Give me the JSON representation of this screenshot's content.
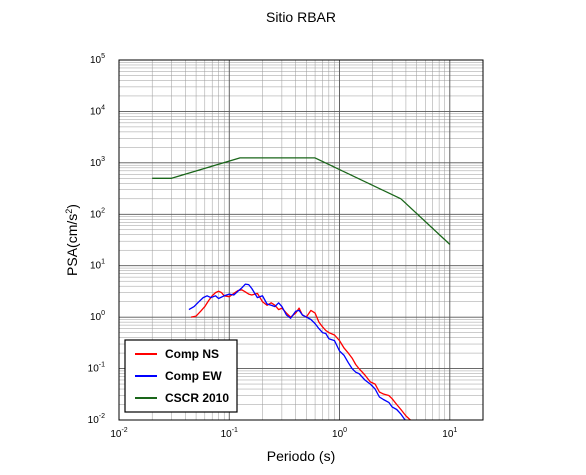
{
  "chart_data": {
    "type": "line",
    "title": "Sitio RBAR",
    "xlabel": "Periodo (s)",
    "ylabel_main": "PSA(cm/s",
    "ylabel_sup": "2",
    "ylabel_close": ")",
    "xscale": "log",
    "yscale": "log",
    "xlim": [
      0.01,
      20
    ],
    "ylim": [
      0.01,
      100000
    ],
    "grid": true,
    "legend_position": "bottom-left",
    "x_ticks": [
      {
        "base": "10",
        "exp": "-2",
        "value": 0.01
      },
      {
        "base": "10",
        "exp": "-1",
        "value": 0.1
      },
      {
        "base": "10",
        "exp": "0",
        "value": 1
      },
      {
        "base": "10",
        "exp": "1",
        "value": 10
      }
    ],
    "y_ticks": [
      {
        "base": "10",
        "exp": "-2",
        "value": 0.01
      },
      {
        "base": "10",
        "exp": "-1",
        "value": 0.1
      },
      {
        "base": "10",
        "exp": "0",
        "value": 1
      },
      {
        "base": "10",
        "exp": "1",
        "value": 10
      },
      {
        "base": "10",
        "exp": "2",
        "value": 100
      },
      {
        "base": "10",
        "exp": "3",
        "value": 1000
      },
      {
        "base": "10",
        "exp": "4",
        "value": 10000
      },
      {
        "base": "10",
        "exp": "5",
        "value": 100000
      }
    ],
    "series": [
      {
        "name": "Comp NS",
        "color": "#ff0000",
        "x": [
          0.045,
          0.05,
          0.055,
          0.06,
          0.065,
          0.07,
          0.075,
          0.08,
          0.085,
          0.09,
          0.1,
          0.11,
          0.12,
          0.13,
          0.14,
          0.15,
          0.16,
          0.18,
          0.2,
          0.22,
          0.24,
          0.26,
          0.28,
          0.3,
          0.33,
          0.36,
          0.4,
          0.43,
          0.46,
          0.5,
          0.55,
          0.6,
          0.65,
          0.7,
          0.75,
          0.8,
          0.9,
          1.0,
          1.1,
          1.2,
          1.3,
          1.4,
          1.5,
          1.7,
          1.9,
          2.1,
          2.3,
          2.5,
          2.8,
          3.0,
          3.3,
          3.6,
          4.0,
          4.5
        ],
        "y": [
          1.0,
          1.05,
          1.3,
          1.6,
          2.1,
          2.6,
          3.0,
          3.2,
          3.0,
          2.6,
          2.5,
          2.9,
          3.3,
          3.4,
          3.1,
          2.8,
          2.7,
          2.9,
          2.0,
          1.7,
          1.9,
          1.7,
          1.4,
          1.5,
          1.2,
          1.0,
          1.2,
          1.5,
          1.1,
          1.0,
          1.35,
          1.2,
          0.8,
          0.65,
          0.55,
          0.5,
          0.45,
          0.35,
          0.25,
          0.2,
          0.16,
          0.12,
          0.1,
          0.075,
          0.055,
          0.05,
          0.035,
          0.032,
          0.03,
          0.026,
          0.02,
          0.016,
          0.012,
          0.0095
        ]
      },
      {
        "name": "Comp EW",
        "color": "#0000ff",
        "x": [
          0.043,
          0.048,
          0.053,
          0.058,
          0.063,
          0.068,
          0.075,
          0.08,
          0.09,
          0.1,
          0.11,
          0.12,
          0.13,
          0.14,
          0.15,
          0.16,
          0.18,
          0.2,
          0.22,
          0.24,
          0.26,
          0.28,
          0.3,
          0.33,
          0.36,
          0.4,
          0.43,
          0.46,
          0.5,
          0.55,
          0.6,
          0.65,
          0.7,
          0.75,
          0.8,
          0.9,
          1.0,
          1.1,
          1.2,
          1.3,
          1.4,
          1.5,
          1.7,
          1.9,
          2.1,
          2.3,
          2.5,
          2.8,
          3.0,
          3.3,
          3.6,
          4.0
        ],
        "y": [
          1.4,
          1.6,
          2.0,
          2.4,
          2.6,
          2.4,
          2.6,
          2.3,
          2.6,
          2.8,
          2.7,
          3.2,
          3.7,
          4.4,
          4.3,
          3.6,
          2.4,
          2.6,
          1.8,
          1.7,
          1.6,
          1.9,
          1.6,
          1.1,
          0.95,
          1.3,
          1.35,
          1.1,
          1.0,
          0.9,
          0.75,
          0.6,
          0.5,
          0.48,
          0.38,
          0.35,
          0.22,
          0.18,
          0.13,
          0.1,
          0.085,
          0.08,
          0.06,
          0.05,
          0.04,
          0.028,
          0.025,
          0.022,
          0.018,
          0.016,
          0.013,
          0.0095
        ]
      },
      {
        "name": "CSCR 2010",
        "color": "#1a661a",
        "x": [
          0.02,
          0.03,
          0.125,
          0.6,
          3.6,
          10
        ],
        "y": [
          500,
          500,
          1250,
          1250,
          200,
          26
        ]
      }
    ]
  }
}
